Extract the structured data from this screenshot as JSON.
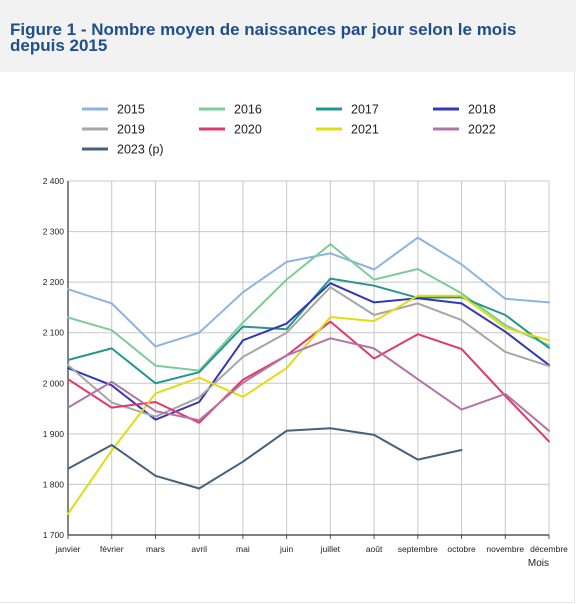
{
  "header": {
    "title": "Figure 1 - Nombre moyen de naissances par jour selon le mois depuis 2015"
  },
  "chart_data": {
    "type": "line",
    "xlabel": "Mois",
    "ylabel": "",
    "categories": [
      "janvier",
      "février",
      "mars",
      "avril",
      "mai",
      "juin",
      "juillet",
      "août",
      "septembre",
      "octobre",
      "novembre",
      "décembre"
    ],
    "ylim": [
      1700,
      2400
    ],
    "yticks": [
      1700,
      1800,
      1900,
      2000,
      2100,
      2200,
      2300,
      2400
    ],
    "ytick_labels": [
      "1 700",
      "1 800",
      "1 900",
      "2 000",
      "2 100",
      "2 200",
      "2 300",
      "2 400"
    ],
    "grid": true,
    "legend_position": "top",
    "series": [
      {
        "name": "2015",
        "color": "#8fb3e0",
        "values": [
          2186,
          2158,
          2073,
          2100,
          2180,
          2240,
          2257,
          2225,
          2288,
          2235,
          2167,
          2160
        ]
      },
      {
        "name": "2016",
        "color": "#7dcc97",
        "values": [
          2130,
          2105,
          2035,
          2025,
          2120,
          2205,
          2275,
          2205,
          2226,
          2178,
          2115,
          2075
        ]
      },
      {
        "name": "2017",
        "color": "#23978f",
        "values": [
          2046,
          2069,
          2000,
          2022,
          2112,
          2107,
          2207,
          2193,
          2169,
          2170,
          2135,
          2070
        ]
      },
      {
        "name": "2018",
        "color": "#3338b5",
        "values": [
          2030,
          1996,
          1928,
          1963,
          2085,
          2118,
          2198,
          2160,
          2168,
          2158,
          2102,
          2036
        ]
      },
      {
        "name": "2019",
        "color": "#a6a6a6",
        "values": [
          2036,
          1962,
          1934,
          1972,
          2052,
          2100,
          2190,
          2135,
          2158,
          2125,
          2062,
          2034
        ]
      },
      {
        "name": "2020",
        "color": "#e03a68",
        "values": [
          2008,
          1952,
          1963,
          1922,
          2007,
          2055,
          2122,
          2049,
          2097,
          2068,
          1975,
          1885
        ]
      },
      {
        "name": "2021",
        "color": "#e1dc14",
        "values": [
          1742,
          1867,
          1980,
          2011,
          1973,
          2030,
          2131,
          2123,
          2173,
          2173,
          2110,
          2085
        ]
      },
      {
        "name": "2022",
        "color": "#b274a8",
        "values": [
          1952,
          2003,
          1945,
          1927,
          2001,
          2055,
          2089,
          2069,
          2008,
          1948,
          1979,
          1906
        ]
      },
      {
        "name": "2023 (p)",
        "color": "#45617e",
        "values": [
          1831,
          1878,
          1817,
          1792,
          1845,
          1906,
          1911,
          1898,
          1849,
          1868,
          null,
          null
        ]
      }
    ]
  }
}
